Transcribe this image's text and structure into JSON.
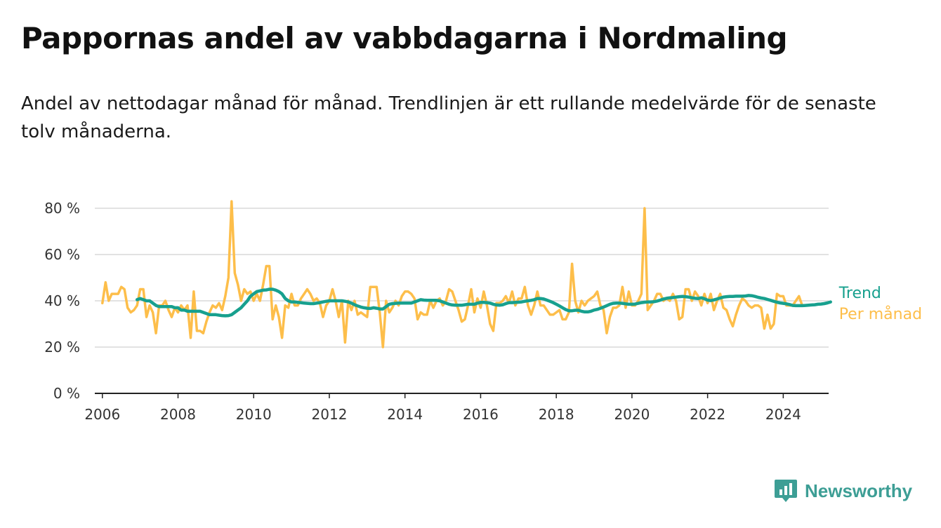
{
  "header": {
    "title": "Pappornas andel av vabbdagarna i Nordmaling",
    "subtitle": "Andel av nettodagar månad för månad. Trendlinjen är ett rullande medelvärde för de senaste tolv månaderna."
  },
  "brand": {
    "name": "Newsworthy",
    "icon": "newsworthy-logo-icon",
    "color": "#3d9e95"
  },
  "chart_data": {
    "type": "line",
    "title": "Pappornas andel av vabbdagarna i Nordmaling",
    "subtitle": "Andel av nettodagar månad för månad. Trendlinjen är ett rullande medelvärde för de senaste tolv månaderna.",
    "xlabel": "",
    "ylabel": "",
    "xlim": [
      2005.8,
      2025.2
    ],
    "ylim": [
      0,
      80
    ],
    "yticks": [
      0,
      20,
      40,
      60,
      80
    ],
    "ytick_labels": [
      "0 %",
      "20 %",
      "40 %",
      "60 %",
      "80 %"
    ],
    "xticks": [
      2006,
      2008,
      2010,
      2012,
      2014,
      2016,
      2018,
      2020,
      2022,
      2024
    ],
    "xtick_labels": [
      "2006",
      "2008",
      "2010",
      "2012",
      "2014",
      "2016",
      "2018",
      "2020",
      "2022",
      "2024"
    ],
    "grid": "horizontal",
    "legend": "inline labels at line ends (right)",
    "colors": {
      "monthly": "#fdbe4a",
      "trend": "#17a08e",
      "grid": "#d9d9d9",
      "axis": "#222222"
    },
    "series": [
      {
        "name": "Per månad",
        "color": "#fdbe4a",
        "x_start": "2006-01",
        "x_step": "1 month",
        "values": [
          39,
          48,
          40,
          43,
          43,
          43,
          46,
          45,
          37,
          35,
          36,
          38,
          45,
          45,
          33,
          38,
          35,
          26,
          38,
          38,
          40,
          36,
          33,
          37,
          35,
          38,
          36,
          38,
          24,
          44,
          27,
          27,
          26,
          31,
          35,
          38,
          37,
          39,
          36,
          42,
          50,
          83,
          52,
          47,
          40,
          45,
          43,
          44,
          40,
          43,
          40,
          47,
          55,
          55,
          32,
          38,
          33,
          24,
          38,
          37,
          43,
          38,
          38,
          41,
          43,
          45,
          43,
          40,
          41,
          39,
          33,
          38,
          40,
          45,
          40,
          33,
          40,
          22,
          40,
          36,
          40,
          34,
          35,
          34,
          33,
          46,
          46,
          46,
          35,
          20,
          40,
          35,
          37,
          40,
          38,
          42,
          44,
          44,
          43,
          41,
          32,
          35,
          34,
          34,
          40,
          37,
          40,
          41,
          38,
          40,
          45,
          44,
          40,
          36,
          31,
          32,
          38,
          45,
          35,
          41,
          37,
          44,
          38,
          30,
          27,
          39,
          39,
          40,
          42,
          39,
          44,
          38,
          41,
          41,
          46,
          38,
          34,
          38,
          44,
          38,
          38,
          36,
          34,
          34,
          35,
          36,
          32,
          32,
          35,
          56,
          40,
          35,
          40,
          38,
          40,
          41,
          42,
          44,
          38,
          36,
          26,
          33,
          37,
          37,
          38,
          46,
          37,
          44,
          38,
          38,
          40,
          43,
          80,
          36,
          38,
          40,
          43,
          43,
          40,
          41,
          40,
          43,
          40,
          32,
          33,
          45,
          45,
          40,
          44,
          42,
          38,
          43,
          39,
          43,
          36,
          40,
          43,
          37,
          36,
          32,
          29,
          34,
          38,
          41,
          40,
          38,
          37,
          38,
          38,
          37,
          28,
          34,
          28,
          30,
          43,
          42,
          42,
          38,
          38,
          38,
          40,
          42,
          38
        ]
      },
      {
        "name": "Trend",
        "color": "#17a08e",
        "x_start": "2006-12",
        "x_step": "1 month",
        "values": [
          40.5,
          41,
          40.5,
          40,
          40,
          39,
          38,
          37.5,
          37.5,
          37.5,
          37.5,
          37.5,
          37,
          37,
          36,
          36,
          35.5,
          35.5,
          35.5,
          35.5,
          35.5,
          35,
          34.5,
          34,
          34,
          34,
          33.8,
          33.6,
          33.5,
          33.6,
          34,
          35,
          36,
          37,
          38.5,
          40,
          42,
          43,
          44,
          44.3,
          44.6,
          44.7,
          45,
          45,
          44.6,
          44,
          43,
          41,
          40,
          39.5,
          39.5,
          39.3,
          39.2,
          39,
          38.9,
          38.8,
          38.8,
          39,
          39.2,
          39.5,
          39.8,
          40,
          40,
          40,
          40,
          40,
          39.8,
          39.5,
          39,
          38.3,
          37.8,
          37.3,
          37,
          36.8,
          36.7,
          37,
          36.8,
          36.5,
          36.5,
          37.5,
          38.5,
          38.8,
          38.9,
          39,
          39,
          39,
          39,
          39,
          39.5,
          40,
          40.5,
          40.3,
          40.2,
          40.2,
          40.2,
          40.2,
          40,
          39.5,
          39,
          38.5,
          38.2,
          38.1,
          38.1,
          38.1,
          38.3,
          38.5,
          38.5,
          38.5,
          39,
          39.3,
          39.3,
          39.2,
          39,
          38.5,
          38.2,
          38.1,
          38.3,
          38.8,
          39.2,
          39.2,
          39.3,
          39.4,
          39.5,
          39.8,
          40,
          40.2,
          40.5,
          41,
          41,
          40.8,
          40.3,
          39.8,
          39.2,
          38.5,
          37.8,
          37,
          36.2,
          35.7,
          35.7,
          35.9,
          35.9,
          35.5,
          35.2,
          35.2,
          35.5,
          36,
          36.3,
          36.8,
          37.3,
          37.9,
          38.5,
          38.9,
          39,
          39,
          38.9,
          38.7,
          38.5,
          38.5,
          38.6,
          38.9,
          39.2,
          39.4,
          39.5,
          39.5,
          39.6,
          39.9,
          40.3,
          40.8,
          41.1,
          41.3,
          41.4,
          41.6,
          41.8,
          41.9,
          41.8,
          41.6,
          41.3,
          41.1,
          41,
          41.3,
          40.9,
          40.3,
          40.1,
          40.4,
          40.8,
          41.2,
          41.6,
          41.8,
          41.9,
          41.9,
          42,
          42,
          42,
          42.1,
          42.3,
          42.2,
          41.9,
          41.5,
          41.2,
          41,
          40.6,
          40.2,
          39.8,
          39.4,
          39.1,
          38.9,
          38.7,
          38.4,
          38,
          37.9,
          37.9,
          37.9,
          38,
          38.1,
          38.2,
          38.3,
          38.5,
          38.6,
          38.8,
          39.1,
          39.5
        ]
      }
    ]
  }
}
